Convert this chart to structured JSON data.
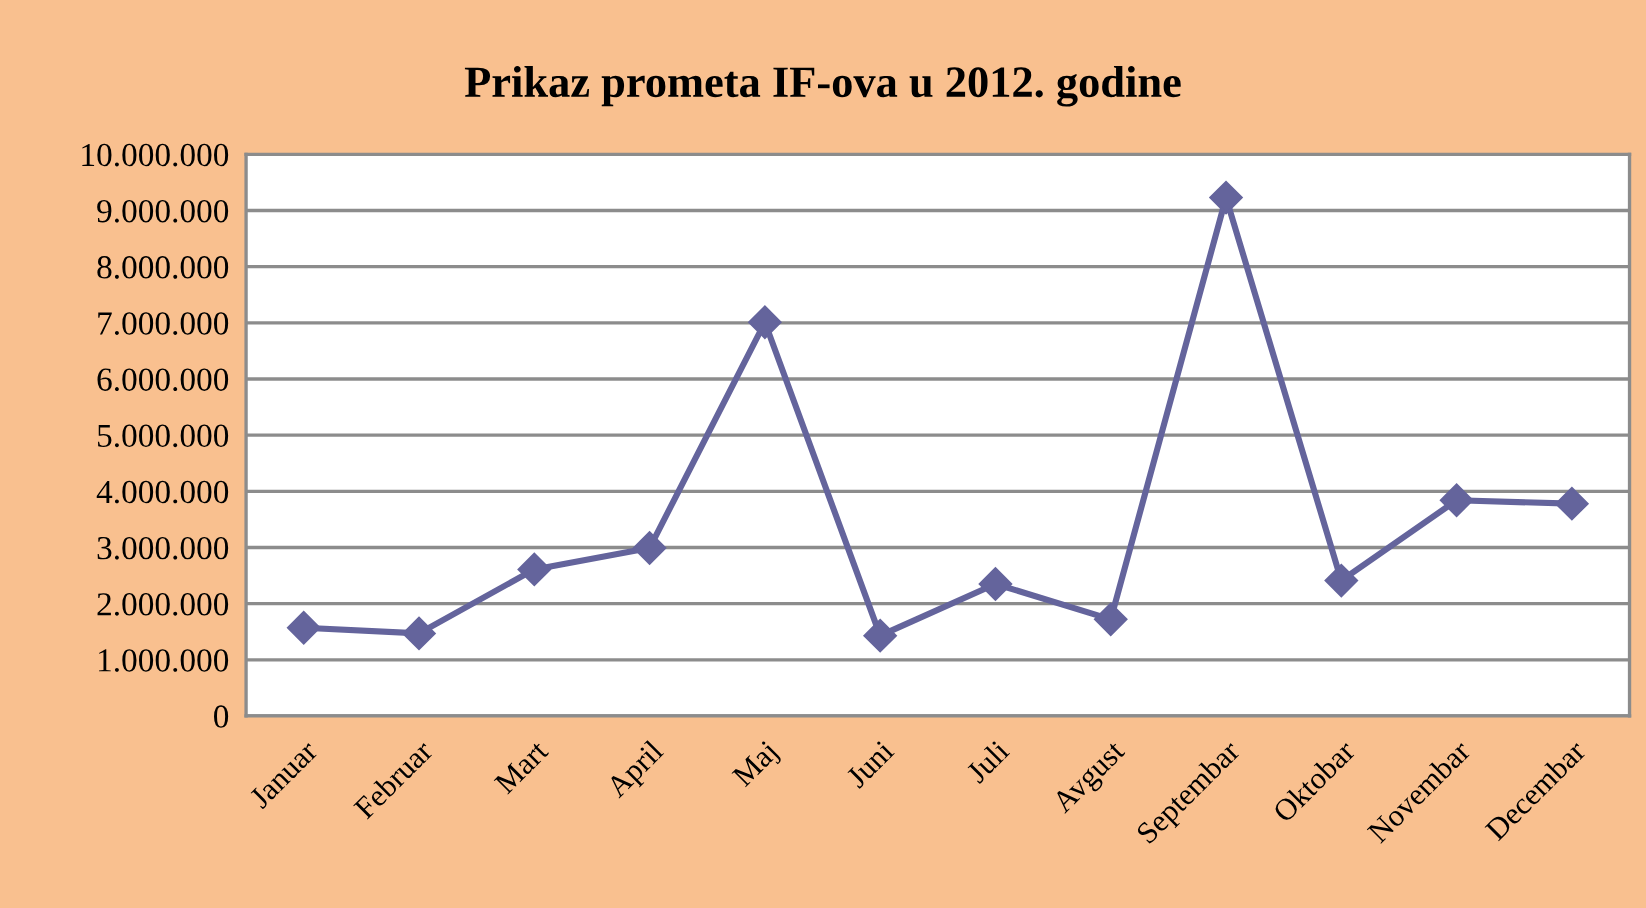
{
  "chart_data": {
    "type": "line",
    "title": "Prikaz prometa IF-ova u 2012. godine",
    "categories": [
      "Januar",
      "Februar",
      "Mart",
      "April",
      "Maj",
      "Juni",
      "Juli",
      "Avgust",
      "Septembar",
      "Oktobar",
      "Novembar",
      "Decembar"
    ],
    "series": [
      {
        "color": "#64649c",
        "values": [
          1570000,
          1470000,
          2610000,
          2990000,
          7010000,
          1430000,
          2350000,
          1720000,
          9230000,
          2410000,
          3840000,
          3780000
        ]
      }
    ],
    "ylim": [
      0,
      10000000
    ],
    "yticks": [
      0,
      {
        "value": 1000000,
        "label": "1.000.000"
      },
      {
        "value": 2000000,
        "label": "2.000.000"
      },
      {
        "value": 3000000,
        "label": "3.000.000"
      },
      {
        "value": 4000000,
        "label": "4.000.000"
      },
      {
        "value": 5000000,
        "label": "5.000.000"
      },
      {
        "value": 6000000,
        "label": "6.000.000"
      },
      {
        "value": 7000000,
        "label": "7.000.000"
      },
      {
        "value": 8000000,
        "label": "8.000.000"
      },
      {
        "value": 9000000,
        "label": "9.000.000"
      },
      {
        "value": 10000000,
        "label": "10.000.000"
      }
    ],
    "grid": "y",
    "marker": "diamond",
    "line_style": "solid"
  }
}
